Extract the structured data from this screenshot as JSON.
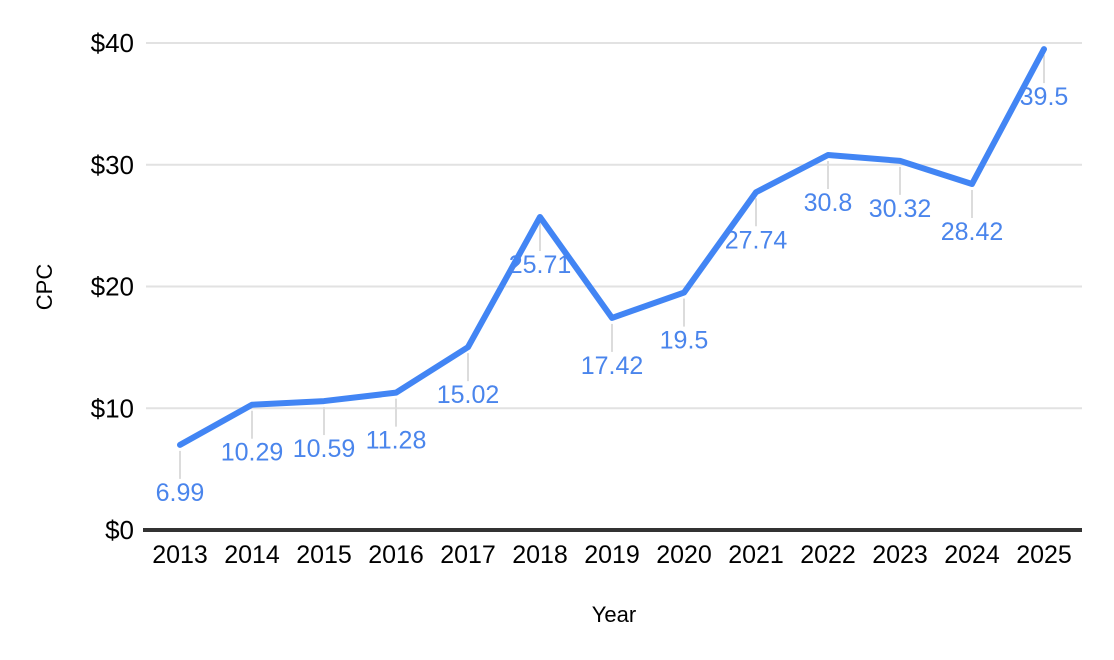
{
  "chart": {
    "colors": {
      "line": "#4285f4",
      "data_label": "#4a85ec",
      "gridline": "#e2e2e2",
      "axis": "#333333",
      "tick_text": "#000000",
      "leader_line": "#dcdcdc",
      "background": "#ffffff"
    }
  },
  "chart_data": {
    "type": "line",
    "title": "",
    "xlabel": "Year",
    "ylabel": "CPC",
    "categories": [
      "2013",
      "2014",
      "2015",
      "2016",
      "2017",
      "2018",
      "2019",
      "2020",
      "2021",
      "2022",
      "2023",
      "2024",
      "2025"
    ],
    "series": [
      {
        "name": "CPC",
        "values": [
          6.99,
          10.29,
          10.59,
          11.28,
          15.02,
          25.71,
          17.42,
          19.5,
          27.74,
          30.8,
          30.32,
          28.42,
          39.5
        ]
      }
    ],
    "data_labels": [
      "6.99",
      "10.29",
      "10.59",
      "11.28",
      "15.02",
      "25.71",
      "17.42",
      "19.5",
      "27.74",
      "30.8",
      "30.32",
      "28.42",
      "39.5"
    ],
    "y_ticks": [
      {
        "value": 0,
        "label": "$0"
      },
      {
        "value": 10,
        "label": "$10"
      },
      {
        "value": 20,
        "label": "$20"
      },
      {
        "value": 30,
        "label": "$30"
      },
      {
        "value": 40,
        "label": "$40"
      }
    ],
    "ylim": [
      0,
      40
    ],
    "grid": true,
    "legend": "none",
    "point_markers": false
  }
}
